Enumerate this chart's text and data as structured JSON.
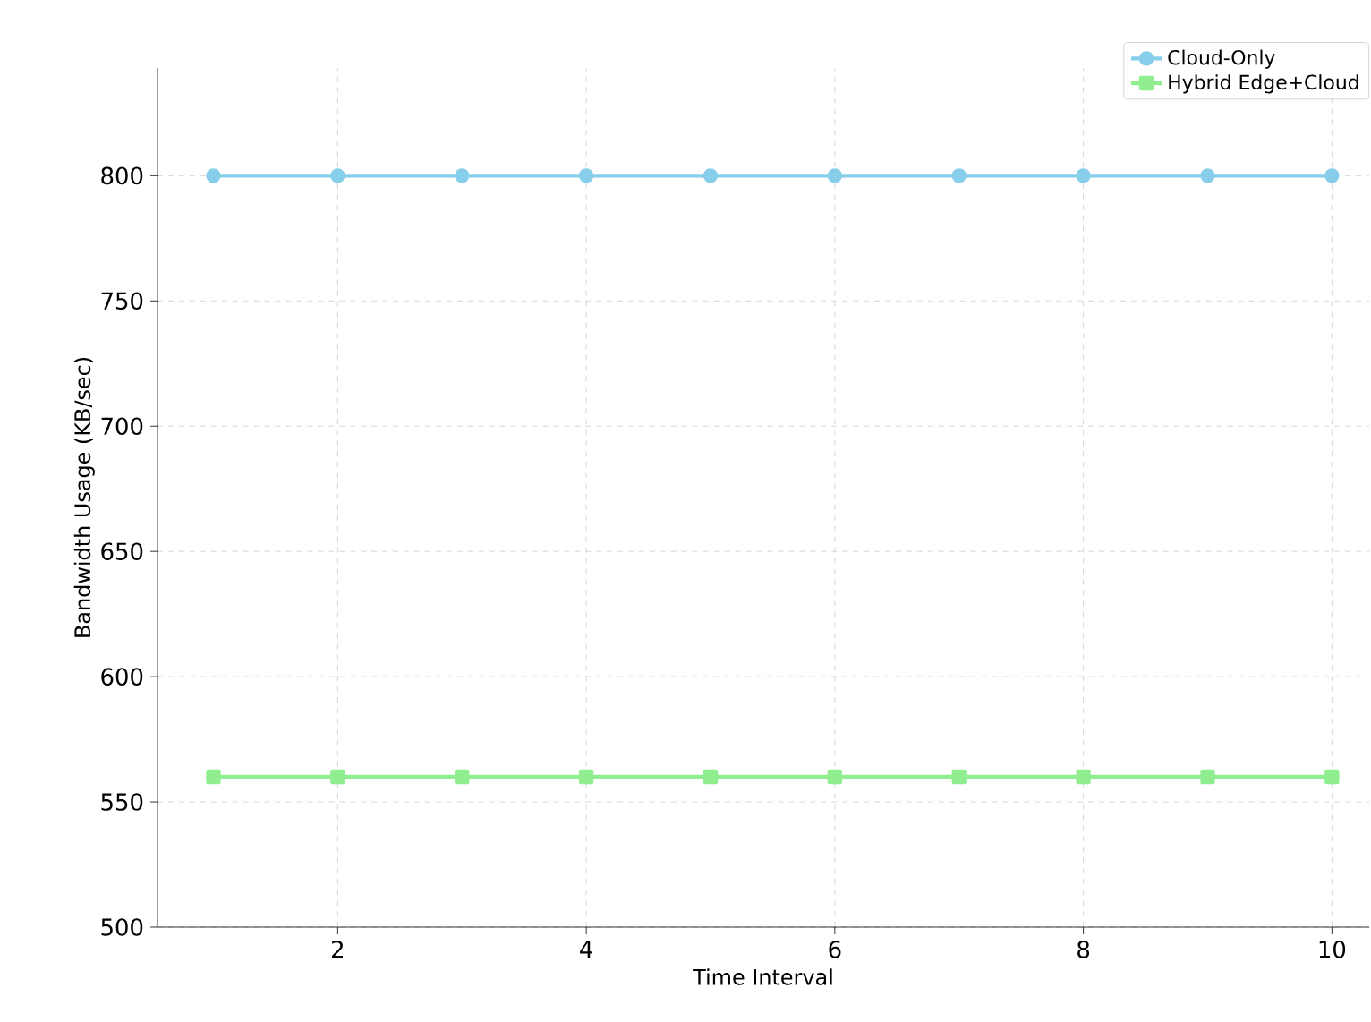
{
  "chart_data": {
    "type": "line",
    "xlabel": "Time Interval",
    "ylabel": "Bandwidth Usage (KB/sec)",
    "x": [
      1,
      2,
      3,
      4,
      5,
      6,
      7,
      8,
      9,
      10
    ],
    "series": [
      {
        "name": "Cloud-Only",
        "color": "#87ceeb",
        "marker": "circle",
        "values": [
          800,
          800,
          800,
          800,
          800,
          800,
          800,
          800,
          800,
          800
        ]
      },
      {
        "name": "Hybrid Edge+Cloud",
        "color": "#90ee90",
        "marker": "square",
        "values": [
          560,
          560,
          560,
          560,
          560,
          560,
          560,
          560,
          560,
          560
        ]
      }
    ],
    "xlim": [
      0.55,
      10.3
    ],
    "ylim": [
      500,
      843
    ],
    "xticks": [
      2,
      4,
      6,
      8,
      10
    ],
    "yticks": [
      500,
      550,
      600,
      650,
      700,
      750,
      800
    ],
    "grid": true,
    "legend": "top right"
  }
}
